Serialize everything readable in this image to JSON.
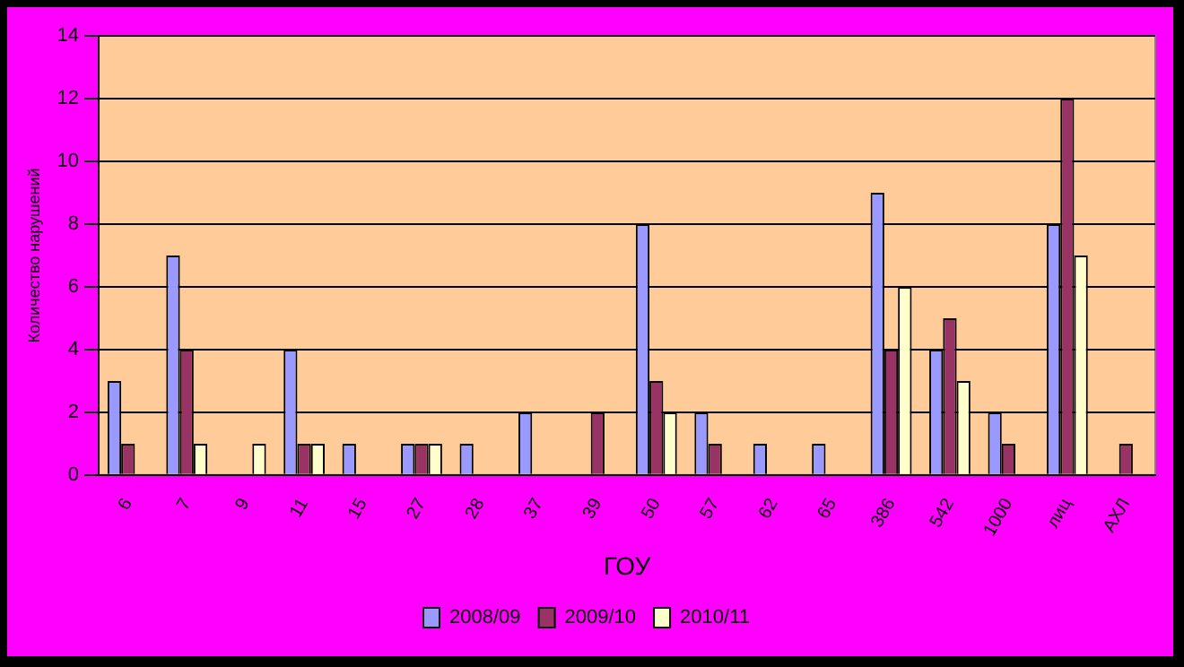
{
  "chart_data": {
    "type": "bar",
    "xlabel": "ГОУ",
    "ylabel": "Количество нарушений",
    "categories": [
      "6",
      "7",
      "9",
      "11",
      "15",
      "27",
      "28",
      "37",
      "39",
      "50",
      "57",
      "62",
      "65",
      "386",
      "542",
      "1000",
      "лиц",
      "АХЛ"
    ],
    "series": [
      {
        "name": "2008/09",
        "color": "#9999ff",
        "values": [
          3,
          7,
          0,
          4,
          1,
          1,
          1,
          2,
          0,
          8,
          2,
          1,
          1,
          9,
          4,
          2,
          8,
          0
        ]
      },
      {
        "name": "2009/10",
        "color": "#993366",
        "values": [
          1,
          4,
          0,
          1,
          0,
          1,
          0,
          0,
          2,
          3,
          1,
          0,
          0,
          4,
          5,
          1,
          12,
          1
        ]
      },
      {
        "name": "2010/11",
        "color": "#ffffcc",
        "values": [
          0,
          1,
          1,
          1,
          0,
          1,
          0,
          0,
          0,
          2,
          0,
          0,
          0,
          6,
          3,
          0,
          7,
          0
        ]
      }
    ],
    "ylim": [
      0,
      14
    ],
    "yticks": [
      0,
      2,
      4,
      6,
      8,
      10,
      12,
      14
    ],
    "grid": "y",
    "legend": "bottom"
  }
}
